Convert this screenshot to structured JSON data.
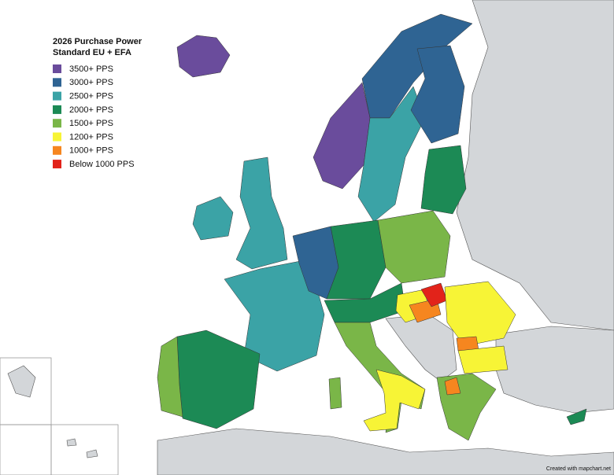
{
  "legend": {
    "title_line1": "2026 Purchase Power",
    "title_line2": "Standard EU + EFA",
    "items": [
      {
        "label": "3500+ PPS",
        "color": "#6a4c9c"
      },
      {
        "label": "3000+ PPS",
        "color": "#2f6493"
      },
      {
        "label": "2500+ PPS",
        "color": "#3ba3a6"
      },
      {
        "label": "2000+ PPS",
        "color": "#1c8a55"
      },
      {
        "label": "1500+ PPS",
        "color": "#7ab648"
      },
      {
        "label": "1200+ PPS",
        "color": "#f7f436"
      },
      {
        "label": "1000+ PPS",
        "color": "#f6861f"
      },
      {
        "label": "Below 1000 PPS",
        "color": "#e2231a"
      }
    ]
  },
  "credit": "Created with mapchart.net"
}
